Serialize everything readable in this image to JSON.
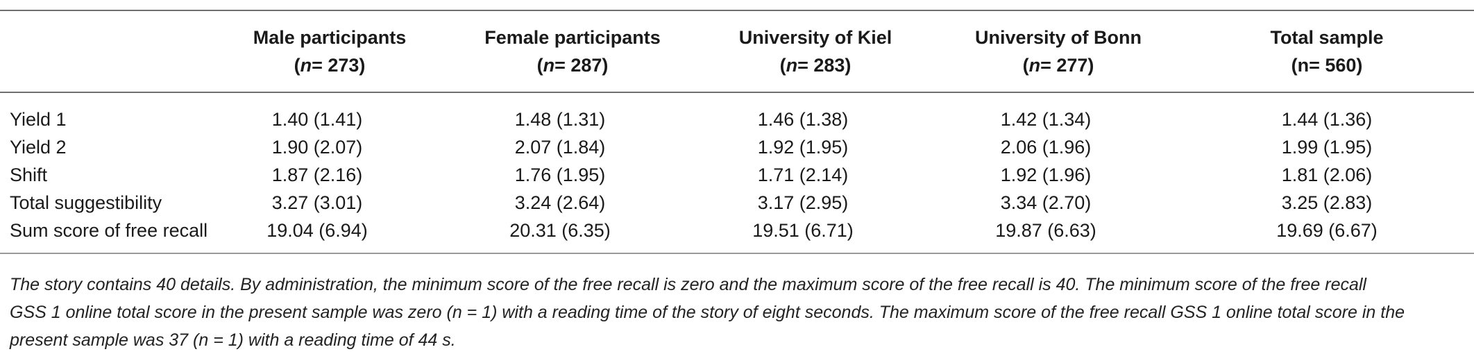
{
  "table": {
    "columns": [
      {
        "name": "Male participants",
        "n_prefix": "(",
        "n_label": "n",
        "n_value": "= 273)",
        "n_italic": true
      },
      {
        "name": "Female participants",
        "n_prefix": "(",
        "n_label": "n",
        "n_value": "= 287)",
        "n_italic": true
      },
      {
        "name": "University of Kiel",
        "n_prefix": "(",
        "n_label": "n",
        "n_value": "= 283)",
        "n_italic": true
      },
      {
        "name": "University of Bonn",
        "n_prefix": "(",
        "n_label": "n",
        "n_value": "= 277)",
        "n_italic": true
      },
      {
        "name": "Total sample",
        "n_prefix": "(",
        "n_label": "n",
        "n_value": "= 560)",
        "n_italic": false
      }
    ],
    "rows": [
      {
        "label": "Yield 1",
        "values": [
          "1.40 (1.41)",
          "1.48 (1.31)",
          "1.46 (1.38)",
          "1.42 (1.34)",
          "1.44 (1.36)"
        ]
      },
      {
        "label": "Yield 2",
        "values": [
          "1.90 (2.07)",
          "2.07 (1.84)",
          "1.92 (1.95)",
          "2.06 (1.96)",
          "1.99 (1.95)"
        ]
      },
      {
        "label": "Shift",
        "values": [
          "1.87 (2.16)",
          "1.76 (1.95)",
          "1.71 (2.14)",
          "1.92 (1.96)",
          "1.81 (2.06)"
        ]
      },
      {
        "label": "Total suggestibility",
        "values": [
          "3.27 (3.01)",
          "3.24 (2.64)",
          "3.17 (2.95)",
          "3.34 (2.70)",
          "3.25 (2.83)"
        ]
      },
      {
        "label": "Sum score of free recall",
        "values": [
          "19.04 (6.94)",
          "20.31 (6.35)",
          "19.51 (6.71)",
          "19.87 (6.63)",
          "19.69 (6.67)"
        ]
      }
    ]
  },
  "note": {
    "line1": "The story contains 40 details. By administration, the minimum score of the free recall is zero and the maximum score of the free recall is 40. The minimum score of the free recall",
    "line2": "GSS 1 online total score in the present sample was zero (n = 1) with a reading time of the story of eight seconds. The maximum score of the free recall GSS 1 online total score in the",
    "line3": "present sample was 37 (n = 1) with a reading time of 44 s."
  }
}
